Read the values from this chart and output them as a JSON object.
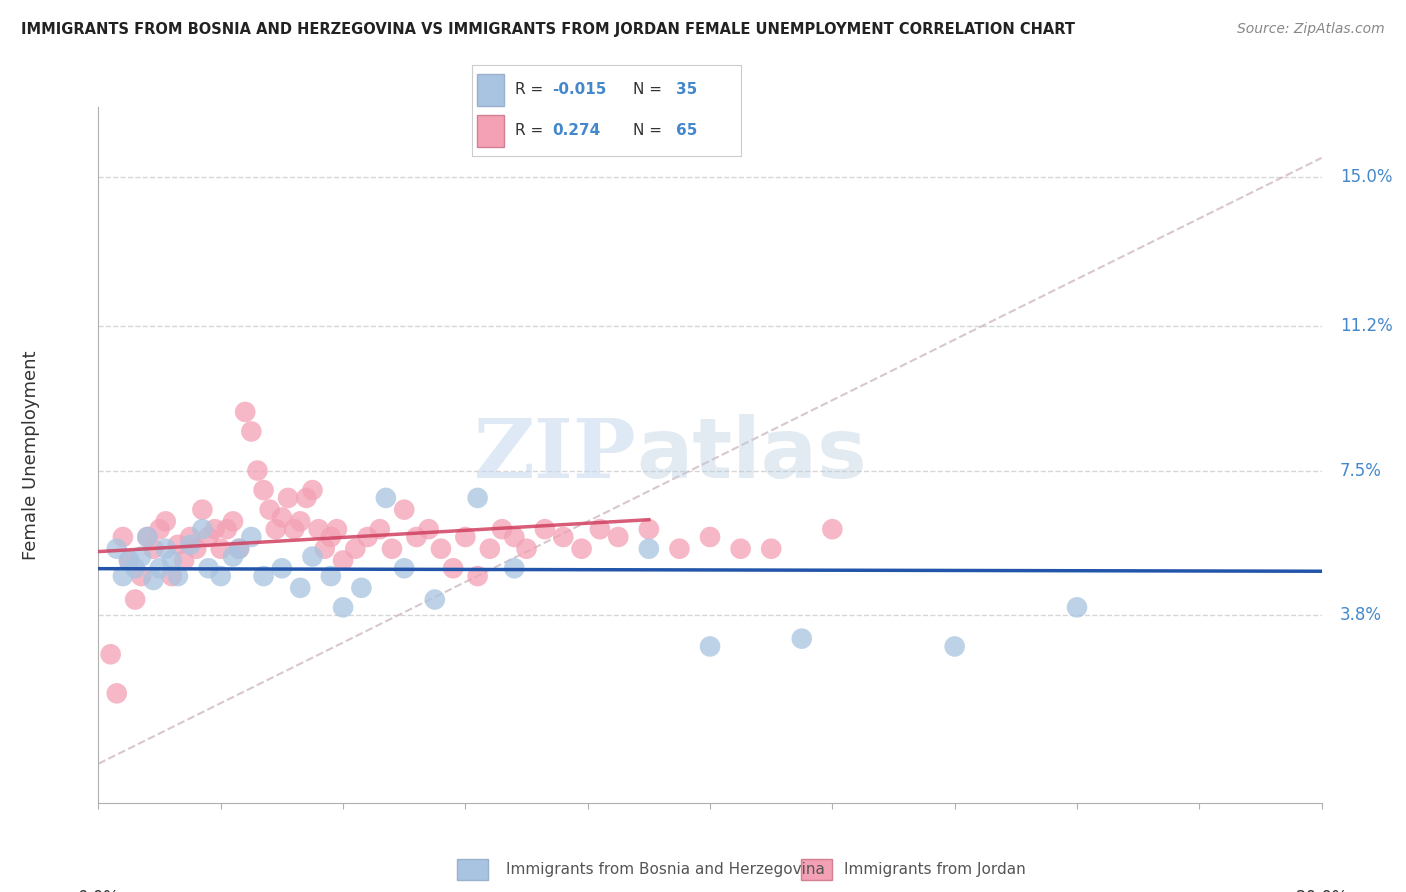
{
  "title": "IMMIGRANTS FROM BOSNIA AND HERZEGOVINA VS IMMIGRANTS FROM JORDAN FEMALE UNEMPLOYMENT CORRELATION CHART",
  "source": "Source: ZipAtlas.com",
  "ylabel": "Female Unemployment",
  "ytick_labels": [
    "3.8%",
    "7.5%",
    "11.2%",
    "15.0%"
  ],
  "ytick_values": [
    0.038,
    0.075,
    0.112,
    0.15
  ],
  "xlim": [
    0.0,
    0.2
  ],
  "ylim": [
    -0.01,
    0.168
  ],
  "color_bosnia": "#a8c4e0",
  "color_jordan": "#f4a0b5",
  "line_color_bosnia": "#2255aa",
  "line_color_jordan": "#d04060",
  "grid_color": "#cccccc",
  "background_color": "#ffffff",
  "bosnia_x": [
    0.003,
    0.004,
    0.005,
    0.006,
    0.007,
    0.008,
    0.009,
    0.01,
    0.011,
    0.012,
    0.013,
    0.015,
    0.017,
    0.018,
    0.02,
    0.022,
    0.023,
    0.025,
    0.027,
    0.03,
    0.033,
    0.035,
    0.038,
    0.04,
    0.043,
    0.047,
    0.05,
    0.055,
    0.062,
    0.068,
    0.09,
    0.1,
    0.115,
    0.14,
    0.16
  ],
  "bosnia_y": [
    0.055,
    0.048,
    0.052,
    0.05,
    0.053,
    0.058,
    0.047,
    0.05,
    0.055,
    0.052,
    0.048,
    0.056,
    0.06,
    0.05,
    0.048,
    0.053,
    0.055,
    0.058,
    0.048,
    0.05,
    0.045,
    0.053,
    0.048,
    0.04,
    0.045,
    0.068,
    0.05,
    0.042,
    0.068,
    0.05,
    0.055,
    0.03,
    0.032,
    0.03,
    0.04
  ],
  "jordan_x": [
    0.002,
    0.003,
    0.004,
    0.005,
    0.006,
    0.007,
    0.008,
    0.009,
    0.01,
    0.011,
    0.012,
    0.013,
    0.014,
    0.015,
    0.016,
    0.017,
    0.018,
    0.019,
    0.02,
    0.021,
    0.022,
    0.023,
    0.024,
    0.025,
    0.026,
    0.027,
    0.028,
    0.029,
    0.03,
    0.031,
    0.032,
    0.033,
    0.034,
    0.035,
    0.036,
    0.037,
    0.038,
    0.039,
    0.04,
    0.042,
    0.044,
    0.046,
    0.048,
    0.05,
    0.052,
    0.054,
    0.056,
    0.058,
    0.06,
    0.062,
    0.064,
    0.066,
    0.068,
    0.07,
    0.073,
    0.076,
    0.079,
    0.082,
    0.085,
    0.09,
    0.095,
    0.1,
    0.105,
    0.11,
    0.12
  ],
  "jordan_y": [
    0.028,
    0.018,
    0.058,
    0.052,
    0.042,
    0.048,
    0.058,
    0.055,
    0.06,
    0.062,
    0.048,
    0.056,
    0.052,
    0.058,
    0.055,
    0.065,
    0.058,
    0.06,
    0.055,
    0.06,
    0.062,
    0.055,
    0.09,
    0.085,
    0.075,
    0.07,
    0.065,
    0.06,
    0.063,
    0.068,
    0.06,
    0.062,
    0.068,
    0.07,
    0.06,
    0.055,
    0.058,
    0.06,
    0.052,
    0.055,
    0.058,
    0.06,
    0.055,
    0.065,
    0.058,
    0.06,
    0.055,
    0.05,
    0.058,
    0.048,
    0.055,
    0.06,
    0.058,
    0.055,
    0.06,
    0.058,
    0.055,
    0.06,
    0.058,
    0.06,
    0.055,
    0.058,
    0.055,
    0.055,
    0.06
  ],
  "watermark_zip": "ZIP",
  "watermark_atlas": "atlas"
}
